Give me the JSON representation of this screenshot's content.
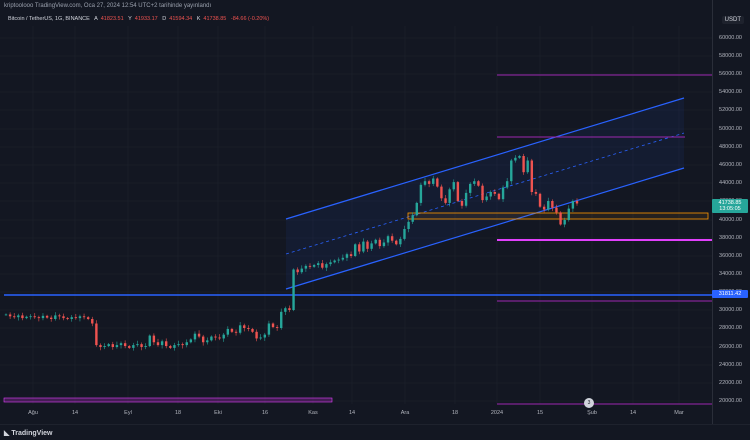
{
  "header": {
    "publish_line": "kriptoolooo TradingView.com, Oca 27, 2024 12:54 UTC+2 tarihinde yayınlandı"
  },
  "symbol": {
    "title": "Bitcoin / TetherUS, 1G, BINANCE",
    "open_label": "A",
    "open": "41823.51",
    "high_label": "Y",
    "high": "41933.17",
    "low_label": "D",
    "low": "41594.34",
    "close_label": "K",
    "close": "41738.85",
    "change": "-84.66 (-0.20%)"
  },
  "price_axis": {
    "currency": "USDT",
    "labels": [
      "60000.00",
      "58000.00",
      "56000.00",
      "54000.00",
      "52000.00",
      "50000.00",
      "48000.00",
      "46000.00",
      "44000.00",
      "42000.00",
      "40000.00",
      "38000.00",
      "36000.00",
      "34000.00",
      "32000.00",
      "30000.00",
      "28000.00",
      "26000.00",
      "24000.00",
      "22000.00",
      "20000.00"
    ]
  },
  "price_tags": {
    "current_price": "41738.85",
    "countdown": "13:05:05",
    "line_price": "31811.42"
  },
  "time_axis": {
    "labels": [
      "Ağu",
      "14",
      "Eyl",
      "18",
      "Eki",
      "16",
      "Kas",
      "14",
      "Ara",
      "18",
      "2024",
      "15",
      "Şub",
      "14",
      "Mar"
    ]
  },
  "footer": {
    "brand": "TradingView"
  },
  "event": {
    "label": "3"
  },
  "colors": {
    "background": "#131722",
    "up": "#26a69a",
    "down": "#ef5350",
    "channel": "#2962ff",
    "support_magenta": "#e040fb",
    "level_purple": "#9c27b0",
    "zone_orange": "#ff9800"
  }
}
